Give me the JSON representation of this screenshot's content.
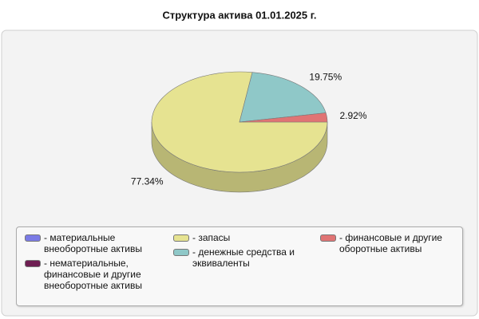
{
  "chart_data": {
    "type": "pie3d",
    "title": "Структура актива 01.01.2025 г.",
    "categories": [
      "- материальные внеоборотные активы",
      "- нематериальные, финансовые и другие внеоборотные активы",
      "- запасы",
      "- денежные средства и эквиваленты",
      "- финансовые и другие оборотные активы"
    ],
    "values": [
      0,
      0,
      77.34,
      19.75,
      2.92
    ],
    "value_labels": [
      null,
      null,
      "77.34%",
      "19.75%",
      "2.92%"
    ],
    "colors": [
      "#7b7be6",
      "#6e1e52",
      "#e6e391",
      "#8fc8c8",
      "#e07474"
    ],
    "legend": "bottom"
  }
}
